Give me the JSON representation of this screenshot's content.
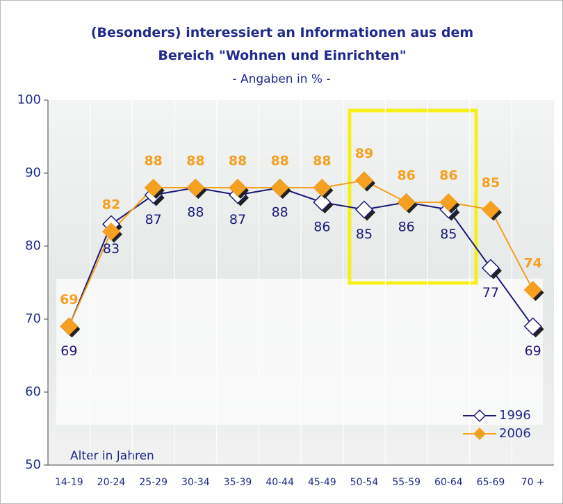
{
  "chart_data": {
    "type": "line",
    "title": "(Besonders) interessiert an Informationen aus dem Bereich \"Wohnen und Einrichten\"",
    "subtitle": "- Angaben in % -",
    "x_label": "Alter in Jahren",
    "categories": [
      "14-19",
      "20-24",
      "25-29",
      "30-34",
      "35-39",
      "40-44",
      "45-49",
      "50-54",
      "55-59",
      "60-64",
      "65-69",
      "70 +"
    ],
    "series": [
      {
        "name": "1996",
        "color": "#1a1a78",
        "marker_fill": "#ffffff",
        "values": [
          69,
          83,
          87,
          88,
          87,
          88,
          86,
          85,
          86,
          85,
          77,
          69
        ]
      },
      {
        "name": "2006",
        "color": "#f5a020",
        "marker_fill": "#f5a020",
        "values": [
          69,
          82,
          88,
          88,
          88,
          88,
          88,
          89,
          86,
          86,
          85,
          74
        ]
      }
    ],
    "ylim": [
      50,
      100
    ],
    "yticks": [
      50,
      60,
      70,
      80,
      90,
      100
    ],
    "grid": true,
    "legend": "lower right"
  }
}
